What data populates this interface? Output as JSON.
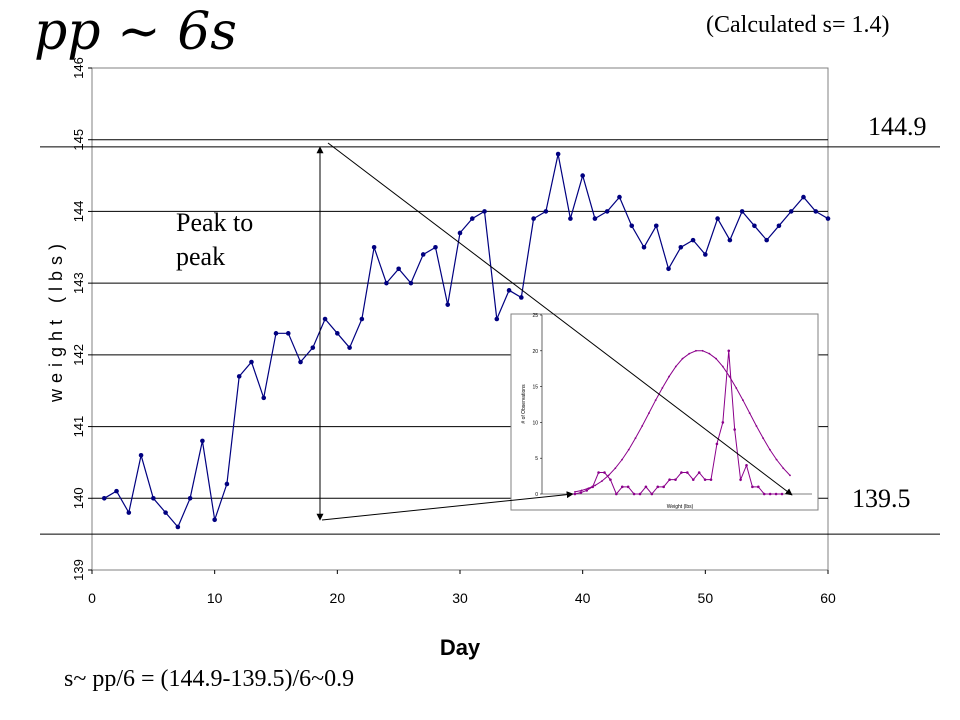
{
  "slide": {
    "heading": "pp ~ 6s",
    "calculated_note": "(Calculated s= 1.4)",
    "upper_line_label": "144.9",
    "lower_line_label": "139.5",
    "peak_label": "Peak to peak",
    "formula": "s~ pp/6 = (144.9-139.5)/6~0.9"
  },
  "chart_data": [
    {
      "type": "line",
      "title": "",
      "xlabel": "Day",
      "ylabel": "weight (lbs)",
      "xlim": [
        0,
        60
      ],
      "ylim": [
        139,
        146
      ],
      "x_ticks": [
        "0",
        "10",
        "20",
        "30",
        "40",
        "50",
        "60"
      ],
      "y_ticks": [
        "139",
        "140",
        "141",
        "142",
        "143",
        "144",
        "145",
        "146"
      ],
      "grid": "horizontal",
      "color": "#000080",
      "x": [
        1,
        2,
        3,
        4,
        5,
        6,
        7,
        8,
        9,
        10,
        11,
        12,
        13,
        14,
        15,
        16,
        17,
        18,
        19,
        20,
        21,
        22,
        23,
        24,
        25,
        26,
        27,
        28,
        29,
        30,
        31,
        32,
        33,
        34,
        35,
        36,
        37,
        38,
        39,
        40,
        41,
        42,
        43,
        44,
        45,
        46,
        47,
        48,
        49,
        50,
        51,
        52,
        53,
        54,
        55,
        56,
        57,
        58,
        59,
        60
      ],
      "y": [
        140.0,
        140.1,
        139.8,
        140.6,
        140.0,
        139.8,
        139.6,
        140.0,
        140.8,
        139.7,
        140.2,
        141.7,
        141.9,
        141.4,
        142.3,
        142.3,
        141.9,
        142.1,
        142.5,
        142.3,
        142.1,
        142.5,
        143.5,
        143.0,
        143.2,
        143.0,
        143.4,
        143.5,
        142.7,
        143.7,
        143.9,
        144.0,
        142.5,
        142.9,
        142.8,
        143.9,
        144.0,
        144.8,
        143.9,
        144.5,
        143.9,
        144.0,
        144.2,
        143.8,
        143.5,
        143.8,
        143.2,
        143.5,
        143.6,
        143.4,
        143.9,
        143.6,
        144.0,
        143.8,
        143.6,
        143.8,
        144.0,
        144.2,
        144.0,
        143.9
      ],
      "reference_lines": [
        144.9,
        139.5
      ]
    },
    {
      "type": "line",
      "title": "",
      "xlabel": "Weight (lbs)",
      "ylabel": "# of Observations",
      "ylim": [
        0,
        25
      ],
      "y_ticks": [
        "0",
        "5",
        "10",
        "15",
        "20",
        "25"
      ],
      "series": [
        {
          "color": "#8b008b",
          "values": [
            0,
            0,
            0.2,
            0.5,
            1,
            3,
            3,
            2,
            0,
            1,
            1,
            0,
            0,
            1,
            0,
            1,
            1,
            2,
            2,
            3,
            3,
            2,
            3,
            2,
            2,
            7,
            10,
            20,
            9,
            2,
            4,
            1,
            1,
            0,
            0,
            0,
            0
          ]
        },
        {
          "color": "#8b008b",
          "values": [
            0.3,
            0.5,
            0.8,
            1.2,
            1.8,
            2.6,
            3.6,
            4.8,
            6.2,
            7.8,
            9.5,
            11.3,
            13.1,
            14.8,
            16.4,
            17.8,
            18.9,
            19.6,
            20,
            20,
            19.6,
            18.9,
            17.8,
            16.4,
            14.8,
            13.1,
            11.3,
            9.5,
            7.8,
            6.2,
            4.8,
            3.6,
            2.6
          ]
        }
      ]
    }
  ]
}
